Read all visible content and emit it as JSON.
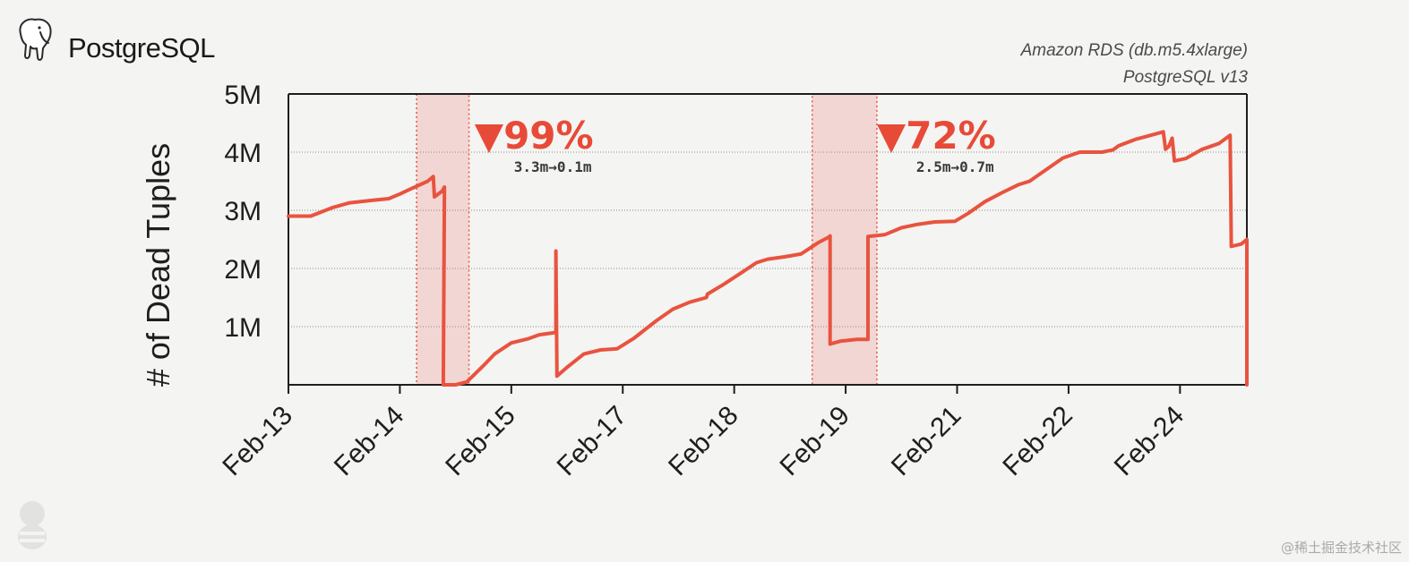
{
  "brand": {
    "logo_text": "PostgreSQL",
    "logo_icon": "elephant-icon"
  },
  "subtitle_lines": [
    "Amazon RDS (db.m5.4xlarge)",
    "PostgreSQL v13"
  ],
  "watermark": "@稀土掘金技术社区",
  "colors": {
    "line": "#e8533f",
    "band_fill": "#f2d6d3",
    "band_border": "#e8533f",
    "annotation": "#e84a38",
    "grid": "#8a8a8a",
    "axis": "#1e1e1e",
    "background": "#f4f4f2"
  },
  "chart_data": {
    "type": "line",
    "ylabel": "# of Dead Tuples",
    "xlabel": "",
    "ylim": [
      0,
      5000000
    ],
    "xlim": [
      0,
      8.6
    ],
    "yticks": [
      {
        "value": 1000000,
        "label": "1M"
      },
      {
        "value": 2000000,
        "label": "2M"
      },
      {
        "value": 3000000,
        "label": "3M"
      },
      {
        "value": 4000000,
        "label": "4M"
      },
      {
        "value": 5000000,
        "label": "5M"
      }
    ],
    "xticks": [
      "Feb-13",
      "Feb-14",
      "Feb-15",
      "Feb-17",
      "Feb-18",
      "Feb-19",
      "Feb-21",
      "Feb-22",
      "Feb-24"
    ],
    "grid": "horizontal",
    "series": [
      {
        "points": [
          [
            0,
            2900000
          ],
          [
            0.2,
            2900000
          ],
          [
            0.4,
            3050000
          ],
          [
            0.55,
            3130000
          ],
          [
            0.75,
            3170000
          ],
          [
            0.9,
            3200000
          ],
          [
            1.0,
            3280000
          ],
          [
            1.1,
            3370000
          ],
          [
            1.25,
            3500000
          ],
          [
            1.3,
            3580000
          ],
          [
            1.31,
            3230000
          ],
          [
            1.38,
            3330000
          ],
          [
            1.4,
            3400000
          ],
          [
            1.39,
            0
          ],
          [
            1.5,
            0
          ],
          [
            1.6,
            50000
          ],
          [
            1.75,
            330000
          ],
          [
            1.85,
            530000
          ],
          [
            2.0,
            720000
          ],
          [
            2.15,
            790000
          ],
          [
            2.25,
            860000
          ],
          [
            2.4,
            900000
          ],
          [
            2.4,
            2300000
          ],
          [
            2.41,
            150000
          ],
          [
            2.5,
            300000
          ],
          [
            2.65,
            530000
          ],
          [
            2.8,
            600000
          ],
          [
            2.95,
            620000
          ],
          [
            3.1,
            800000
          ],
          [
            3.3,
            1100000
          ],
          [
            3.45,
            1300000
          ],
          [
            3.6,
            1420000
          ],
          [
            3.75,
            1500000
          ],
          [
            3.76,
            1560000
          ],
          [
            3.9,
            1720000
          ],
          [
            4.05,
            1910000
          ],
          [
            4.2,
            2100000
          ],
          [
            4.3,
            2160000
          ],
          [
            4.45,
            2200000
          ],
          [
            4.6,
            2250000
          ],
          [
            4.75,
            2440000
          ],
          [
            4.85,
            2540000
          ],
          [
            4.86,
            2560000
          ],
          [
            4.86,
            700000
          ],
          [
            4.95,
            750000
          ],
          [
            5.1,
            780000
          ],
          [
            5.2,
            780000
          ],
          [
            5.2,
            2550000
          ],
          [
            5.35,
            2580000
          ],
          [
            5.5,
            2700000
          ],
          [
            5.65,
            2760000
          ],
          [
            5.8,
            2800000
          ],
          [
            5.98,
            2810000
          ],
          [
            6.1,
            2950000
          ],
          [
            6.25,
            3150000
          ],
          [
            6.4,
            3300000
          ],
          [
            6.55,
            3440000
          ],
          [
            6.65,
            3500000
          ],
          [
            6.8,
            3700000
          ],
          [
            6.95,
            3900000
          ],
          [
            7.1,
            4000000
          ],
          [
            7.3,
            4000000
          ],
          [
            7.4,
            4040000
          ],
          [
            7.45,
            4110000
          ],
          [
            7.6,
            4220000
          ],
          [
            7.7,
            4270000
          ],
          [
            7.85,
            4350000
          ],
          [
            7.87,
            4050000
          ],
          [
            7.9,
            4100000
          ],
          [
            7.93,
            4240000
          ],
          [
            7.95,
            3850000
          ],
          [
            8.05,
            3890000
          ],
          [
            8.2,
            4050000
          ],
          [
            8.35,
            4150000
          ],
          [
            8.45,
            4290000
          ],
          [
            8.46,
            2380000
          ],
          [
            8.55,
            2420000
          ],
          [
            8.6,
            2500000
          ],
          [
            8.6,
            0
          ]
        ]
      }
    ],
    "shaded_regions": [
      {
        "x_start": 1.15,
        "x_end": 1.62
      },
      {
        "x_start": 4.7,
        "x_end": 5.28
      }
    ],
    "annotations": [
      {
        "x": 1.67,
        "headline": "▼99%",
        "detail": "3.3m→0.1m"
      },
      {
        "x": 5.28,
        "headline": "▼72%",
        "detail": "2.5m→0.7m"
      }
    ]
  }
}
